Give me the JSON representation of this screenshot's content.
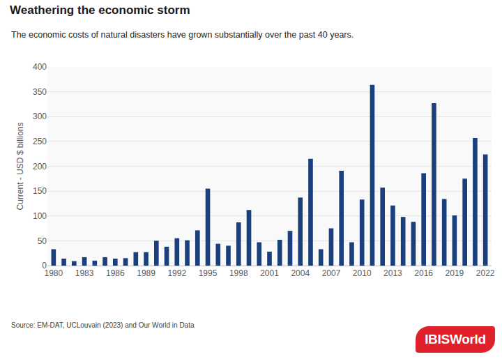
{
  "chart_data": {
    "type": "bar",
    "title": "Weathering the economic storm",
    "subtitle": "The economic costs of natural disasters have grown substantially over the past 40 years.",
    "y_label": "Current - USD $ billions",
    "source": "Source: EM-DAT, UCLouvain (2023) and Our World in Data",
    "logo": "IBISWorld",
    "x": [
      1980,
      1981,
      1982,
      1983,
      1984,
      1985,
      1986,
      1987,
      1988,
      1989,
      1990,
      1991,
      1992,
      1993,
      1994,
      1995,
      1996,
      1997,
      1998,
      1999,
      2000,
      2001,
      2002,
      2003,
      2004,
      2005,
      2006,
      2007,
      2008,
      2009,
      2010,
      2011,
      2012,
      2013,
      2014,
      2015,
      2016,
      2017,
      2018,
      2019,
      2020,
      2021,
      2022
    ],
    "values": [
      33,
      14,
      9,
      17,
      10,
      17,
      14,
      15,
      27,
      27,
      50,
      38,
      55,
      51,
      71,
      155,
      44,
      40,
      87,
      112,
      47,
      28,
      52,
      70,
      137,
      215,
      33,
      75,
      191,
      47,
      133,
      364,
      157,
      121,
      98,
      88,
      186,
      327,
      134,
      101,
      175,
      257,
      224
    ],
    "color": "#1b3f7c",
    "xlim": [
      1979.4,
      2022.6
    ],
    "xticks": [
      1980,
      1983,
      1986,
      1989,
      1992,
      1995,
      1998,
      2001,
      2004,
      2007,
      2010,
      2013,
      2016,
      2019,
      2022
    ],
    "ylim": [
      0,
      400
    ],
    "yticks": [
      0,
      50,
      100,
      150,
      200,
      250,
      300,
      350,
      400
    ],
    "grid": true
  }
}
